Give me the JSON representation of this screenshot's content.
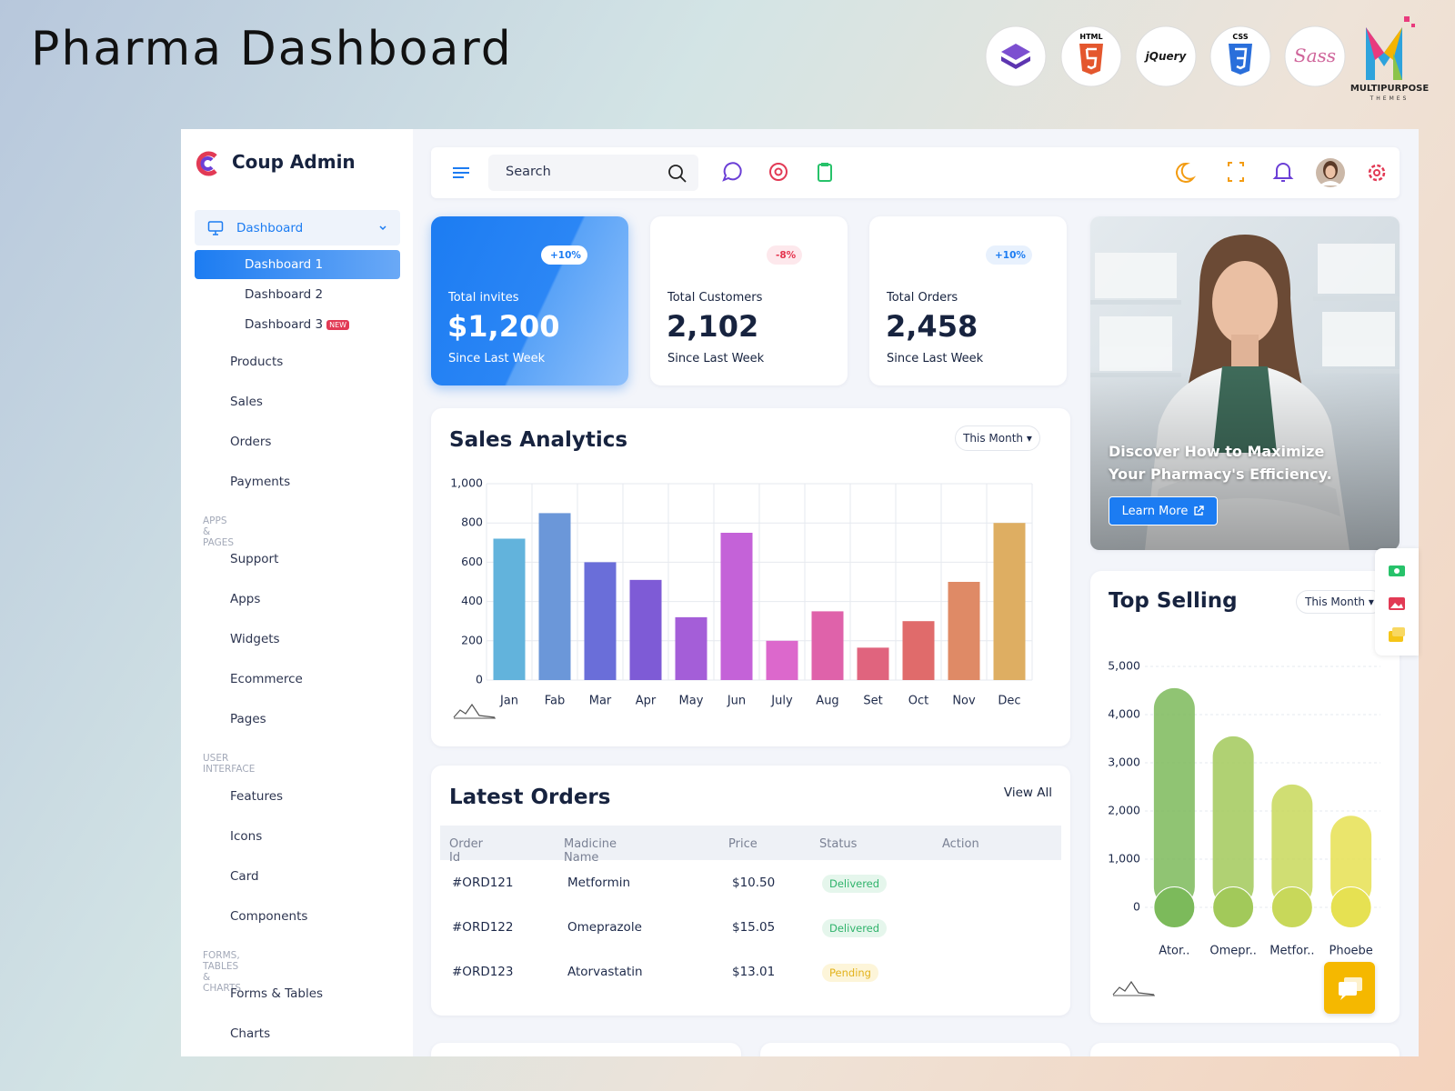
{
  "header": {
    "title": "Pharma Dashboard",
    "badges": [
      "HTML",
      "jQuery",
      "CSS",
      "Sass"
    ],
    "logo": {
      "name": "MULTIPURPOSE",
      "tagline": "THEMES"
    }
  },
  "sidebar": {
    "brand": "Coup Admin",
    "dashboard": {
      "label": "Dashboard",
      "items": [
        {
          "label": "Dashboard 1",
          "active": true
        },
        {
          "label": "Dashboard 2"
        },
        {
          "label": "Dashboard 3",
          "badge": "NEW"
        }
      ]
    },
    "groups": [
      {
        "items": [
          {
            "label": "Products"
          },
          {
            "label": "Sales"
          },
          {
            "label": "Orders"
          },
          {
            "label": "Payments"
          }
        ]
      },
      {
        "title": "APPS & PAGES",
        "items": [
          {
            "label": "Support"
          },
          {
            "label": "Apps",
            "submenu": true
          },
          {
            "label": "Widgets",
            "submenu": true
          },
          {
            "label": "Ecommerce",
            "submenu": true
          },
          {
            "label": "Pages",
            "submenu": true
          }
        ]
      },
      {
        "title": "USER INTERFACE",
        "items": [
          {
            "label": "Features",
            "submenu": true
          },
          {
            "label": "Icons",
            "submenu": true
          },
          {
            "label": "Card",
            "submenu": true
          },
          {
            "label": "Components",
            "submenu": true
          }
        ]
      },
      {
        "title": "FORMS, TABLES & CHARTS",
        "items": [
          {
            "label": "Forms & Tables",
            "submenu": true
          },
          {
            "label": "Charts",
            "submenu": true
          }
        ]
      }
    ]
  },
  "topbar": {
    "search": "Search"
  },
  "stats": [
    {
      "label": "Total invites",
      "value": "$1,200",
      "change": "+10%",
      "trend": "up",
      "note": "Since Last Week",
      "highlight": true
    },
    {
      "label": "Total Customers",
      "value": "2,102",
      "change": "-8%",
      "trend": "down",
      "note": "Since Last Week"
    },
    {
      "label": "Total Orders",
      "value": "2,458",
      "change": "+10%",
      "trend": "up",
      "note": "Since Last Week"
    }
  ],
  "promo": {
    "text": "Discover How to Maximize Your Pharmacy's Efficiency.",
    "button": "Learn More"
  },
  "sales_analytics": {
    "title": "Sales Analytics",
    "filter": "This Month",
    "chart_data": {
      "type": "bar",
      "categories": [
        "Jan",
        "Fab",
        "Mar",
        "Apr",
        "May",
        "Jun",
        "July",
        "Aug",
        "Set",
        "Oct",
        "Nov",
        "Dec"
      ],
      "values": [
        720,
        850,
        600,
        510,
        320,
        750,
        200,
        350,
        165,
        300,
        500,
        800
      ],
      "colors": [
        "#62b3dc",
        "#6b97d9",
        "#6a6ed9",
        "#7e5bd6",
        "#a45ed8",
        "#c462d8",
        "#dc68cc",
        "#df62aa",
        "#e0647e",
        "#e06b6b",
        "#df8a66",
        "#deae62"
      ],
      "ylim": [
        0,
        1000
      ],
      "yticks": [
        0,
        200,
        400,
        600,
        800,
        {
          "value": 1000,
          "label": "1,000"
        }
      ],
      "grid": true
    }
  },
  "latest_orders": {
    "title": "Latest Orders",
    "link": "View All",
    "columns": [
      "Order Id",
      "Madicine Name",
      "Price",
      "Status",
      "Action"
    ],
    "rows": [
      {
        "id": "#ORD121",
        "medicine": "Metformin",
        "price": "$10.50",
        "status": "Delivered",
        "status_color": "#2fb36b",
        "status_bg": "#e5f6ec"
      },
      {
        "id": "#ORD122",
        "medicine": "Omeprazole",
        "price": "$15.05",
        "status": "Delivered",
        "status_color": "#2fb36b",
        "status_bg": "#e5f6ec"
      },
      {
        "id": "#ORD123",
        "medicine": "Atorvastatin",
        "price": "$13.01",
        "status": "Pending",
        "status_color": "#e2b21c",
        "status_bg": "#fdf5d9"
      }
    ]
  },
  "top_selling": {
    "title": "Top Selling",
    "filter": "This Month",
    "chart_data": {
      "type": "bar",
      "categories": [
        "Ator..",
        "Omepr..",
        "Metfor..",
        "Phoebe"
      ],
      "values": [
        4550,
        3550,
        2550,
        1900
      ],
      "colors": [
        "#7cba5b",
        "#a2c95a",
        "#c8d85a",
        "#e6e152"
      ],
      "ylim": [
        0,
        5000
      ],
      "yticks": [
        0,
        {
          "value": 1000,
          "label": "1,000"
        },
        {
          "value": 2000,
          "label": "2,000"
        },
        {
          "value": 3000,
          "label": "3,000"
        },
        {
          "value": 4000,
          "label": "4,000"
        },
        {
          "value": 5000,
          "label": "5,000"
        }
      ],
      "grid": true
    }
  }
}
